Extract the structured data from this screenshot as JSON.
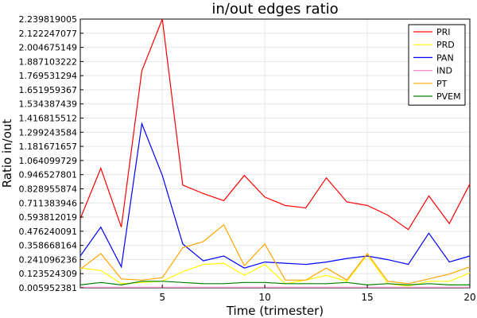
{
  "chart_data": {
    "type": "line",
    "title": "in/out edges ratio",
    "xlabel": "Time (trimester)",
    "ylabel": "Ratio in/out",
    "xlim": [
      1,
      20
    ],
    "ylim": [
      0.005952381,
      2.239819005
    ],
    "xticks": [
      5,
      10,
      15,
      20
    ],
    "yticks": [
      0.005952381,
      0.123524309,
      0.241096236,
      0.358668164,
      0.476240091,
      0.593812019,
      0.711383946,
      0.828955874,
      0.946527801,
      1.064099729,
      1.181671657,
      1.299243584,
      1.416815512,
      1.534387439,
      1.651959367,
      1.769531294,
      1.887103222,
      2.004675149,
      2.122247077,
      2.239819005
    ],
    "ytick_labels": [
      "0.005952381",
      "0.123524309",
      "0.241096236",
      "0.358668164",
      "0.476240091",
      "0.593812019",
      "0.711383946",
      "0.828955874",
      "0.946527801",
      "1.064099729",
      "1.181671657",
      "1.299243584",
      "1.416815512",
      "1.534387439",
      "1.651959367",
      "1.769531294",
      "1.887103222",
      "2.004675149",
      "2.122247077",
      "2.239819005"
    ],
    "grid": true,
    "legend_position": "top-right",
    "x": [
      1,
      2,
      3,
      4,
      5,
      6,
      7,
      8,
      9,
      10,
      11,
      12,
      13,
      14,
      15,
      16,
      17,
      18,
      19,
      20
    ],
    "series": [
      {
        "name": "PRI",
        "color": "#ff0000",
        "values": [
          0.58,
          1.0,
          0.51,
          1.81,
          2.24,
          0.86,
          0.79,
          0.73,
          0.94,
          0.76,
          0.69,
          0.67,
          0.92,
          0.72,
          0.69,
          0.61,
          0.49,
          0.77,
          0.54,
          0.87
        ]
      },
      {
        "name": "PRD",
        "color": "#ffff00",
        "values": [
          0.17,
          0.15,
          0.04,
          0.05,
          0.06,
          0.14,
          0.2,
          0.21,
          0.11,
          0.2,
          0.04,
          0.07,
          0.11,
          0.06,
          0.28,
          0.04,
          0.02,
          0.06,
          0.06,
          0.13
        ]
      },
      {
        "name": "PAN",
        "color": "#0000ff",
        "values": [
          0.27,
          0.51,
          0.18,
          1.37,
          0.94,
          0.37,
          0.23,
          0.27,
          0.17,
          0.22,
          0.21,
          0.2,
          0.22,
          0.25,
          0.27,
          0.24,
          0.2,
          0.46,
          0.22,
          0.27
        ]
      },
      {
        "name": "IND",
        "color": "#ff88cc",
        "values": [
          0.01,
          0.01,
          0.01,
          0.01,
          0.01,
          0.01,
          0.01,
          0.01,
          0.01,
          0.01,
          0.01,
          0.01,
          0.01,
          0.01,
          0.01,
          0.01,
          0.01,
          0.01,
          0.01,
          0.01
        ]
      },
      {
        "name": "PT",
        "color": "#ffa500",
        "values": [
          0.16,
          0.29,
          0.08,
          0.07,
          0.09,
          0.34,
          0.39,
          0.53,
          0.19,
          0.37,
          0.07,
          0.07,
          0.17,
          0.07,
          0.29,
          0.06,
          0.04,
          0.08,
          0.12,
          0.18
        ]
      },
      {
        "name": "PVEM",
        "color": "#008000",
        "values": [
          0.03,
          0.05,
          0.03,
          0.06,
          0.06,
          0.05,
          0.04,
          0.04,
          0.05,
          0.05,
          0.04,
          0.04,
          0.04,
          0.05,
          0.03,
          0.04,
          0.03,
          0.04,
          0.03,
          0.03
        ]
      }
    ]
  }
}
